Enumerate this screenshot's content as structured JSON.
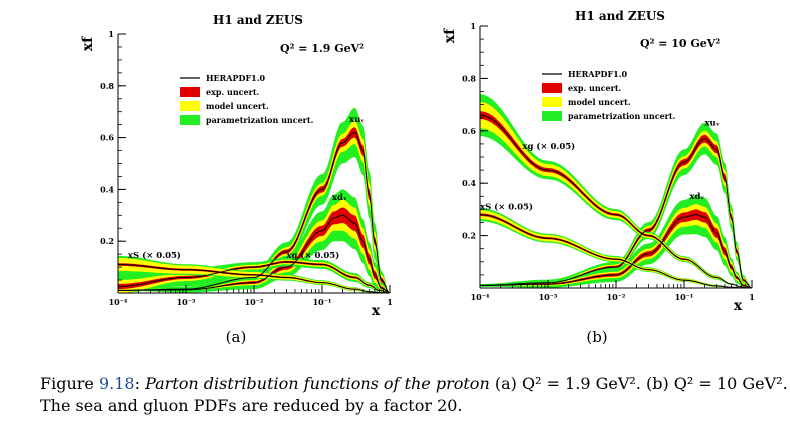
{
  "chart_data": [
    {
      "panel": "(a)",
      "type": "line",
      "title": "H1 and ZEUS",
      "scale_label": "Q² =  1.9 GeV²",
      "xlabel": "x",
      "ylabel": "xf",
      "x_scale": "log",
      "xlim": [
        0.0001,
        1
      ],
      "ylim": [
        0,
        1
      ],
      "xticks": [
        {
          "v": 0.0001,
          "t": "10⁻⁴"
        },
        {
          "v": 0.001,
          "t": "10⁻³"
        },
        {
          "v": 0.01,
          "t": "10⁻²"
        },
        {
          "v": 0.1,
          "t": "10⁻¹"
        },
        {
          "v": 1,
          "t": "1"
        }
      ],
      "yticks": [
        {
          "v": 0.2,
          "t": "0.2"
        },
        {
          "v": 0.4,
          "t": "0.4"
        },
        {
          "v": 0.6,
          "t": "0.6"
        },
        {
          "v": 0.8,
          "t": "0.8"
        },
        {
          "v": 1,
          "t": "1"
        }
      ],
      "legend": {
        "position": "upper-left",
        "items": [
          {
            "label": "HERAPDF1.0",
            "kind": "line",
            "color": "#000000"
          },
          {
            "label": "exp. uncert.",
            "kind": "band",
            "color": "#e00000"
          },
          {
            "label": "model uncert.",
            "kind": "band",
            "color": "#ffff00"
          },
          {
            "label": "parametrization uncert.",
            "kind": "band",
            "color": "#22ee22"
          }
        ]
      },
      "series": [
        {
          "name": "xuᵥ",
          "x": [
            0.0001,
            0.001,
            0.01,
            0.03,
            0.1,
            0.2,
            0.3,
            0.4,
            0.5,
            0.6,
            0.75,
            1
          ],
          "y": [
            0.01,
            0.015,
            0.06,
            0.16,
            0.4,
            0.58,
            0.62,
            0.55,
            0.38,
            0.2,
            0.05,
            0
          ],
          "exp": [
            0.0,
            0.0,
            0.005,
            0.008,
            0.012,
            0.015,
            0.02,
            0.02,
            0.02,
            0.015,
            0.01,
            0
          ],
          "model": [
            0.0,
            0.0,
            0.005,
            0.008,
            0.012,
            0.02,
            0.025,
            0.025,
            0.025,
            0.02,
            0.01,
            0
          ],
          "param": [
            0.0,
            0.01,
            0.015,
            0.02,
            0.035,
            0.045,
            0.05,
            0.05,
            0.045,
            0.035,
            0.015,
            0
          ],
          "label_at": [
            0.25,
            0.66
          ]
        },
        {
          "name": "xdᵥ",
          "x": [
            0.0001,
            0.001,
            0.01,
            0.03,
            0.1,
            0.15,
            0.2,
            0.3,
            0.4,
            0.5,
            0.6,
            0.75,
            1
          ],
          "y": [
            0.01,
            0.012,
            0.04,
            0.1,
            0.24,
            0.29,
            0.3,
            0.27,
            0.2,
            0.13,
            0.07,
            0.02,
            0
          ],
          "exp": [
            0.0,
            0.0,
            0.005,
            0.01,
            0.02,
            0.025,
            0.03,
            0.03,
            0.025,
            0.02,
            0.015,
            0.005,
            0
          ],
          "model": [
            0.0,
            0.0,
            0.005,
            0.01,
            0.02,
            0.025,
            0.03,
            0.03,
            0.025,
            0.02,
            0.015,
            0.005,
            0
          ],
          "param": [
            0.0,
            0.01,
            0.015,
            0.02,
            0.035,
            0.04,
            0.04,
            0.04,
            0.035,
            0.025,
            0.02,
            0.01,
            0
          ],
          "label_at": [
            0.14,
            0.36
          ]
        },
        {
          "name": "xg (× 0.05)",
          "x": [
            0.0001,
            0.001,
            0.01,
            0.03,
            0.1,
            0.3,
            0.5,
            0.7,
            1
          ],
          "y": [
            0.025,
            0.06,
            0.1,
            0.12,
            0.11,
            0.06,
            0.03,
            0.01,
            0
          ],
          "exp": [
            0.01,
            0.006,
            0.004,
            0.004,
            0.004,
            0.004,
            0.003,
            0.002,
            0
          ],
          "model": [
            0.015,
            0.008,
            0.005,
            0.005,
            0.005,
            0.005,
            0.003,
            0.002,
            0
          ],
          "param": [
            0.06,
            0.02,
            0.01,
            0.008,
            0.008,
            0.008,
            0.005,
            0.003,
            0
          ],
          "label_at": [
            0.03,
            0.135
          ]
        },
        {
          "name": "xS (× 0.05)",
          "x": [
            0.0001,
            0.001,
            0.01,
            0.03,
            0.1,
            0.3,
            0.5,
            0.7,
            1
          ],
          "y": [
            0.11,
            0.09,
            0.07,
            0.06,
            0.04,
            0.015,
            0.005,
            0.002,
            0
          ],
          "exp": [
            0.005,
            0.004,
            0.003,
            0.003,
            0.002,
            0.002,
            0.001,
            0,
            0
          ],
          "model": [
            0.02,
            0.012,
            0.008,
            0.005,
            0.004,
            0.003,
            0.001,
            0,
            0
          ],
          "param": [
            0.008,
            0.005,
            0.004,
            0.004,
            0.003,
            0.002,
            0.001,
            0,
            0
          ],
          "label_at": [
            0.00014,
            0.135
          ]
        }
      ]
    },
    {
      "panel": "(b)",
      "type": "line",
      "title": "H1 and ZEUS",
      "scale_label": "Q² = 10 GeV²",
      "xlabel": "x",
      "ylabel": "xf",
      "x_scale": "log",
      "xlim": [
        0.0001,
        1
      ],
      "ylim": [
        0,
        1
      ],
      "xticks": [
        {
          "v": 0.0001,
          "t": "10⁻⁴"
        },
        {
          "v": 0.001,
          "t": "10⁻³"
        },
        {
          "v": 0.01,
          "t": "10⁻²"
        },
        {
          "v": 0.1,
          "t": "10⁻¹"
        },
        {
          "v": 1,
          "t": "1"
        }
      ],
      "yticks": [
        {
          "v": 0.2,
          "t": "0.2"
        },
        {
          "v": 0.4,
          "t": "0.4"
        },
        {
          "v": 0.6,
          "t": "0.6"
        },
        {
          "v": 0.8,
          "t": "0.8"
        },
        {
          "v": 1,
          "t": "1"
        }
      ],
      "legend": {
        "position": "upper-right",
        "items": [
          {
            "label": "HERAPDF1.0",
            "kind": "line",
            "color": "#000000"
          },
          {
            "label": "exp. uncert.",
            "kind": "band",
            "color": "#e00000"
          },
          {
            "label": "model uncert.",
            "kind": "band",
            "color": "#ffff00"
          },
          {
            "label": "parametrization uncert.",
            "kind": "band",
            "color": "#22ee22"
          }
        ]
      },
      "series": [
        {
          "name": "xuᵥ",
          "x": [
            0.0001,
            0.001,
            0.01,
            0.03,
            0.1,
            0.2,
            0.3,
            0.4,
            0.5,
            0.6,
            0.75,
            1
          ],
          "y": [
            0.01,
            0.02,
            0.08,
            0.22,
            0.48,
            0.57,
            0.53,
            0.42,
            0.27,
            0.14,
            0.03,
            0
          ],
          "exp": [
            0.0,
            0.003,
            0.005,
            0.008,
            0.012,
            0.015,
            0.015,
            0.015,
            0.012,
            0.01,
            0.005,
            0
          ],
          "model": [
            0.0,
            0.003,
            0.005,
            0.008,
            0.012,
            0.015,
            0.015,
            0.015,
            0.012,
            0.01,
            0.005,
            0
          ],
          "param": [
            0.005,
            0.006,
            0.01,
            0.015,
            0.025,
            0.03,
            0.03,
            0.028,
            0.022,
            0.015,
            0.008,
            0
          ],
          "label_at": [
            0.2,
            0.62
          ]
        },
        {
          "name": "xdᵥ",
          "x": [
            0.0001,
            0.001,
            0.01,
            0.03,
            0.1,
            0.15,
            0.2,
            0.3,
            0.4,
            0.5,
            0.6,
            0.75,
            1
          ],
          "y": [
            0.01,
            0.015,
            0.05,
            0.13,
            0.27,
            0.28,
            0.27,
            0.21,
            0.14,
            0.08,
            0.04,
            0.01,
            0
          ],
          "exp": [
            0.0,
            0.003,
            0.006,
            0.01,
            0.018,
            0.02,
            0.02,
            0.018,
            0.015,
            0.01,
            0.006,
            0.003,
            0
          ],
          "model": [
            0.0,
            0.003,
            0.006,
            0.01,
            0.018,
            0.02,
            0.02,
            0.018,
            0.015,
            0.01,
            0.006,
            0.003,
            0
          ],
          "param": [
            0.005,
            0.008,
            0.015,
            0.02,
            0.03,
            0.035,
            0.035,
            0.03,
            0.025,
            0.015,
            0.01,
            0.005,
            0
          ],
          "label_at": [
            0.12,
            0.34
          ]
        },
        {
          "name": "xg (× 0.05)",
          "x": [
            0.0001,
            0.001,
            0.01,
            0.03,
            0.1,
            0.3,
            0.5,
            0.7,
            1
          ],
          "y": [
            0.66,
            0.45,
            0.28,
            0.2,
            0.11,
            0.04,
            0.015,
            0.004,
            0
          ],
          "exp": [
            0.015,
            0.008,
            0.005,
            0.004,
            0.003,
            0.002,
            0.001,
            0,
            0
          ],
          "model": [
            0.035,
            0.015,
            0.008,
            0.005,
            0.004,
            0.003,
            0.001,
            0,
            0
          ],
          "param": [
            0.03,
            0.012,
            0.008,
            0.005,
            0.004,
            0.003,
            0.001,
            0,
            0
          ],
          "label_at": [
            0.00042,
            0.53
          ]
        },
        {
          "name": "xS (× 0.05)",
          "x": [
            0.0001,
            0.001,
            0.01,
            0.03,
            0.1,
            0.3,
            0.5,
            0.7,
            1
          ],
          "y": [
            0.28,
            0.19,
            0.11,
            0.07,
            0.03,
            0.008,
            0.003,
            0.001,
            0
          ],
          "exp": [
            0.005,
            0.004,
            0.003,
            0.002,
            0.002,
            0.001,
            0,
            0,
            0
          ],
          "model": [
            0.012,
            0.008,
            0.005,
            0.004,
            0.003,
            0.002,
            0,
            0,
            0
          ],
          "param": [
            0.008,
            0.005,
            0.004,
            0.003,
            0.002,
            0.001,
            0,
            0,
            0
          ],
          "label_at": [
            0.0001,
            0.3
          ]
        }
      ]
    }
  ],
  "caption": {
    "prefix": "Figure ",
    "number": "9.18",
    "colon": ": ",
    "italic": "Parton distribution functions of the proton",
    "rest": " (a) Q² = 1.9 GeV². (b) Q² = 10 GeV². The sea and gluon PDFs are reduced by a factor 20."
  }
}
